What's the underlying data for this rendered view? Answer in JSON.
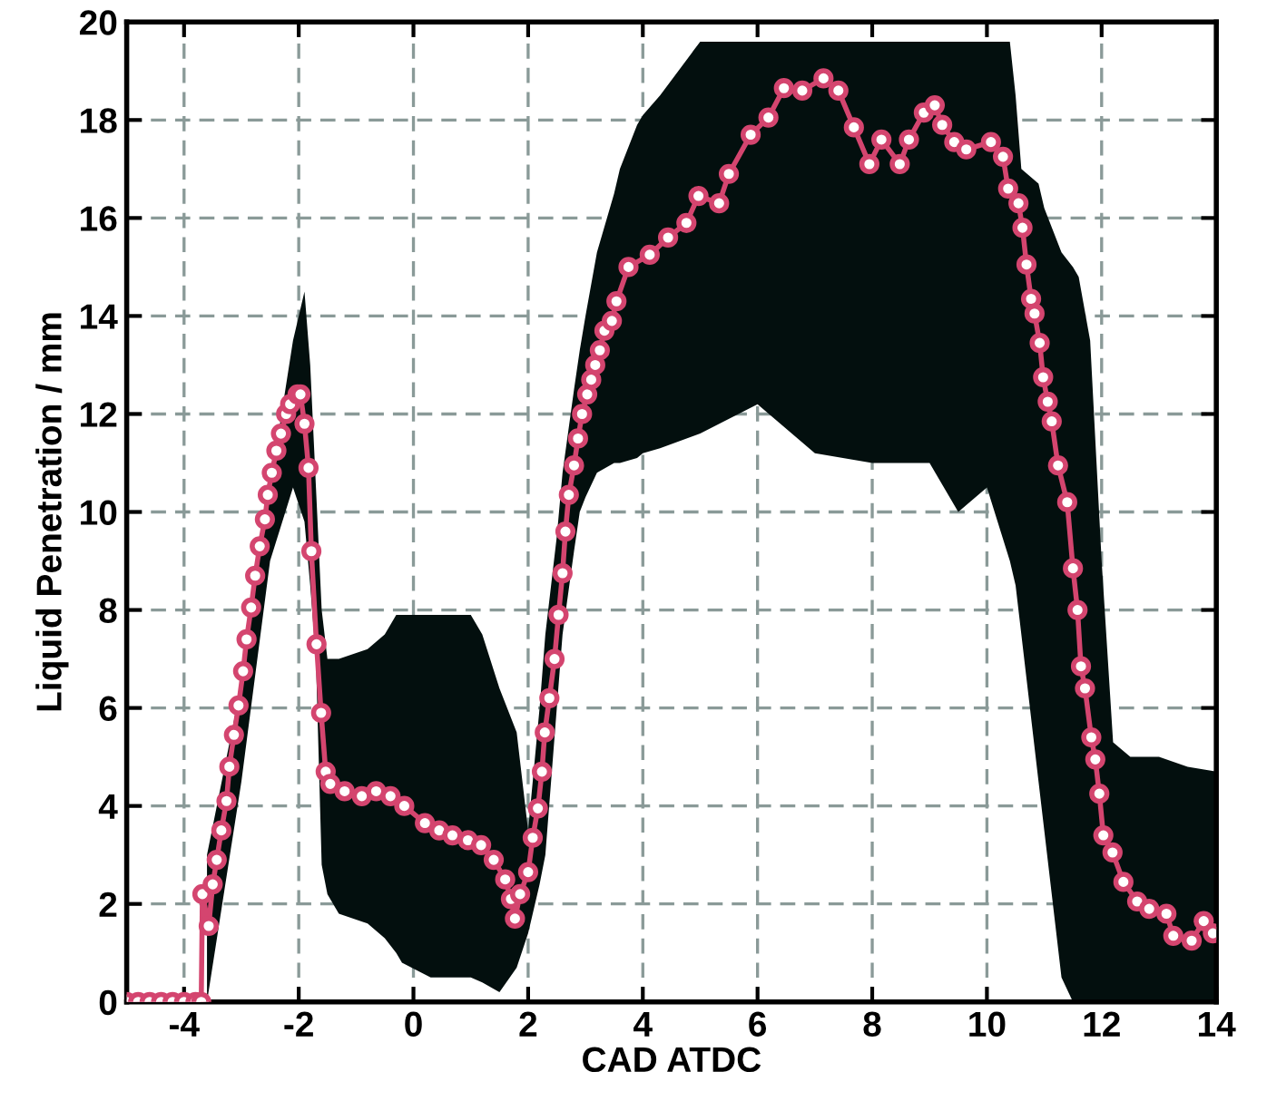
{
  "chart_data": {
    "type": "line",
    "xlabel": "CAD ATDC",
    "ylabel": "Liquid Penetration / mm",
    "xlim": [
      -5,
      14
    ],
    "ylim": [
      0,
      20
    ],
    "xticks": [
      -4,
      -2,
      0,
      2,
      4,
      6,
      8,
      10,
      12,
      14
    ],
    "yticks": [
      0,
      2,
      4,
      6,
      8,
      10,
      12,
      14,
      16,
      18,
      20
    ],
    "grid": true,
    "series": [
      {
        "color": "#030f0e",
        "marker": "none",
        "x": [
          -3.6,
          -3.0,
          -2.5,
          -2.1,
          -1.9,
          -1.8,
          -1.7,
          -1.6,
          -1.5,
          -1.3,
          -0.8,
          -0.5,
          -0.3,
          -0.2,
          0.3,
          1.0,
          1.2,
          1.5,
          1.8,
          2.0,
          2.2,
          2.3,
          2.5,
          2.6,
          2.8,
          2.9,
          3.0,
          3.2,
          3.5,
          3.6,
          3.9,
          4.0,
          4.3,
          5.0,
          6.0,
          7.0,
          8.0,
          9.0,
          9.5,
          10.0,
          10.4,
          10.5,
          10.6,
          10.9,
          11.0,
          11.3,
          11.5,
          11.6,
          11.8,
          12.0,
          12.2,
          12.5,
          13.0,
          13.5,
          14.0
        ],
        "lower": [
          0,
          4.5,
          9.0,
          10.5,
          9.8,
          8.5,
          7.0,
          2.8,
          2.2,
          1.8,
          1.6,
          1.3,
          1.0,
          0.8,
          0.5,
          0.5,
          0.4,
          0.2,
          0.7,
          1.4,
          2.4,
          3.0,
          6.0,
          7.5,
          9.2,
          10.0,
          10.3,
          10.8,
          11.0,
          11.0,
          11.1,
          11.2,
          11.3,
          11.6,
          12.2,
          11.2,
          11.0,
          11.0,
          10.0,
          10.5,
          9.0,
          8.5,
          7.5,
          4.5,
          3.5,
          0.5,
          0,
          0,
          0,
          0,
          0,
          0,
          0,
          0,
          0
        ],
        "values": [
          null,
          null,
          null,
          null,
          null,
          null,
          null,
          null,
          null,
          null,
          null,
          null,
          null,
          null,
          null,
          null,
          null,
          null,
          null,
          null,
          null,
          null,
          null,
          null,
          null,
          null,
          null,
          null,
          null,
          null,
          null,
          null,
          null,
          null,
          null,
          null,
          null,
          null,
          null,
          null,
          null,
          null,
          null,
          null,
          null,
          null,
          null,
          null,
          null,
          null,
          null,
          null,
          null,
          null,
          null
        ],
        "upper": [
          3.0,
          6.5,
          10.5,
          13.5,
          14.5,
          13.0,
          10.5,
          8.0,
          7.0,
          7.0,
          7.2,
          7.5,
          7.9,
          7.9,
          7.9,
          7.9,
          7.5,
          6.4,
          5.5,
          3.5,
          6.0,
          7.5,
          9.5,
          10.8,
          12.5,
          13.3,
          14.0,
          15.3,
          16.5,
          17.0,
          17.9,
          18.1,
          18.5,
          19.6,
          19.6,
          19.6,
          19.6,
          19.6,
          19.6,
          19.6,
          19.6,
          18.5,
          17.0,
          16.7,
          16.2,
          15.3,
          15.0,
          14.8,
          13.5,
          9.0,
          5.3,
          5.0,
          5.0,
          4.8,
          4.7
        ]
      },
      {
        "color": "#d4456f",
        "marker": "circle",
        "line_style": "solid",
        "x": [
          -5.0,
          -4.8,
          -4.6,
          -4.4,
          -4.2,
          -4.0,
          -3.8,
          -3.7,
          -3.68,
          -3.57,
          -3.5,
          -3.43,
          -3.35,
          -3.26,
          -3.21,
          -3.13,
          -3.05,
          -2.97,
          -2.91,
          -2.83,
          -2.76,
          -2.68,
          -2.59,
          -2.54,
          -2.47,
          -2.39,
          -2.31,
          -2.22,
          -2.15,
          -2.02,
          -1.97,
          -1.9,
          -1.83,
          -1.78,
          -1.69,
          -1.61,
          -1.53,
          -1.45,
          -1.2,
          -0.9,
          -0.65,
          -0.4,
          -0.16,
          0.2,
          0.45,
          0.68,
          0.95,
          1.18,
          1.4,
          1.6,
          1.7,
          1.77,
          1.86,
          2.0,
          2.08,
          2.17,
          2.24,
          2.29,
          2.37,
          2.46,
          2.53,
          2.6,
          2.65,
          2.71,
          2.8,
          2.87,
          2.94,
          3.03,
          3.1,
          3.17,
          3.25,
          3.33,
          3.46,
          3.54,
          3.75,
          4.12,
          4.44,
          4.76,
          4.97,
          5.33,
          5.5,
          5.88,
          6.19,
          6.46,
          6.78,
          7.15,
          7.41,
          7.68,
          7.95,
          8.16,
          8.48,
          8.64,
          8.9,
          9.09,
          9.22,
          9.43,
          9.64,
          10.07,
          10.28,
          10.37,
          10.55,
          10.62,
          10.69,
          10.77,
          10.83,
          10.92,
          10.98,
          11.06,
          11.13,
          11.24,
          11.4,
          11.5,
          11.58,
          11.64,
          11.71,
          11.82,
          11.89,
          11.96,
          12.03,
          12.19,
          12.38,
          12.62,
          12.83,
          13.13,
          13.25,
          13.57,
          13.78,
          13.94
        ],
        "values": [
          0,
          0,
          0,
          0,
          0,
          0,
          0,
          0,
          2.2,
          1.55,
          2.4,
          2.9,
          3.5,
          4.1,
          4.8,
          5.45,
          6.05,
          6.75,
          7.4,
          8.05,
          8.7,
          9.3,
          9.85,
          10.35,
          10.8,
          11.25,
          11.6,
          12.0,
          12.2,
          12.4,
          12.4,
          11.8,
          10.9,
          9.2,
          7.3,
          5.9,
          4.7,
          4.45,
          4.3,
          4.2,
          4.3,
          4.2,
          4.0,
          3.65,
          3.5,
          3.4,
          3.3,
          3.2,
          2.9,
          2.5,
          2.1,
          1.7,
          2.2,
          2.65,
          3.35,
          3.95,
          4.7,
          5.5,
          6.2,
          7.0,
          7.9,
          8.75,
          9.6,
          10.35,
          10.95,
          11.5,
          12.0,
          12.4,
          12.7,
          13.0,
          13.3,
          13.7,
          13.9,
          14.3,
          15.0,
          15.25,
          15.6,
          15.9,
          16.45,
          16.3,
          16.9,
          17.7,
          18.05,
          18.65,
          18.6,
          18.85,
          18.6,
          17.85,
          17.1,
          17.6,
          17.1,
          17.6,
          18.15,
          18.3,
          17.9,
          17.55,
          17.4,
          17.55,
          17.25,
          16.6,
          16.3,
          15.8,
          15.05,
          14.35,
          14.05,
          13.45,
          12.75,
          12.25,
          11.85,
          10.95,
          10.2,
          8.85,
          8.0,
          6.85,
          6.4,
          5.4,
          4.95,
          4.25,
          3.4,
          3.05,
          2.45,
          2.05,
          1.9,
          1.8,
          1.35,
          1.25,
          1.65,
          1.4
        ]
      }
    ]
  }
}
